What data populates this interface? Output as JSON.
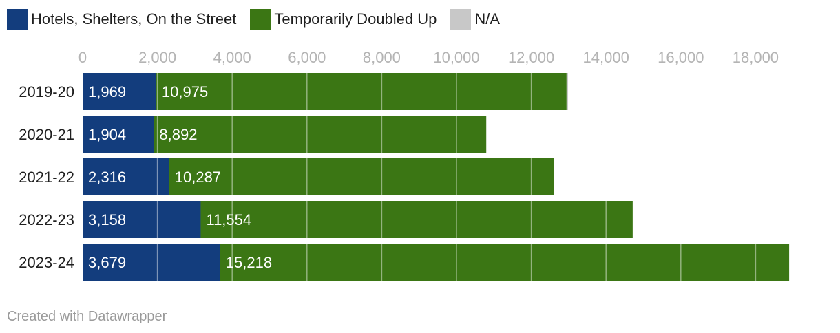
{
  "legend": [
    {
      "label": "Hotels, Shelters, On the Street",
      "color": "#133d7d"
    },
    {
      "label": "Temporarily Doubled Up",
      "color": "#3b7614"
    },
    {
      "label": "N/A",
      "color": "#c8c8c8"
    }
  ],
  "footer": {
    "credit": "Created with Datawrapper"
  },
  "chart_data": {
    "type": "bar",
    "orientation": "horizontal",
    "stacked": true,
    "categories": [
      "2019-20",
      "2020-21",
      "2021-22",
      "2022-23",
      "2023-24"
    ],
    "series": [
      {
        "name": "Hotels, Shelters, On the Street",
        "color": "#133d7d",
        "values": [
          1969,
          1904,
          2316,
          3158,
          3679
        ],
        "labels": [
          "1,969",
          "1,904",
          "2,316",
          "3,158",
          "3,679"
        ]
      },
      {
        "name": "Temporarily Doubled Up",
        "color": "#3b7614",
        "values": [
          10975,
          8892,
          10287,
          11554,
          15218
        ],
        "labels": [
          "10,975",
          "8,892",
          "10,287",
          "11,554",
          "15,218"
        ]
      },
      {
        "name": "N/A",
        "color": "#c8c8c8",
        "values": [
          40,
          0,
          0,
          0,
          0
        ],
        "labels": [
          "",
          "",
          "",
          "",
          ""
        ]
      }
    ],
    "xlim": [
      0,
      19000
    ],
    "ticks": [
      0,
      2000,
      4000,
      6000,
      8000,
      10000,
      12000,
      14000,
      16000,
      18000
    ],
    "tick_labels": [
      "0",
      "2,000",
      "4,000",
      "6,000",
      "8,000",
      "10,000",
      "12,000",
      "14,000",
      "16,000",
      "18,000"
    ],
    "axis_position": "top",
    "grid": true,
    "legend_position": "top-left"
  }
}
